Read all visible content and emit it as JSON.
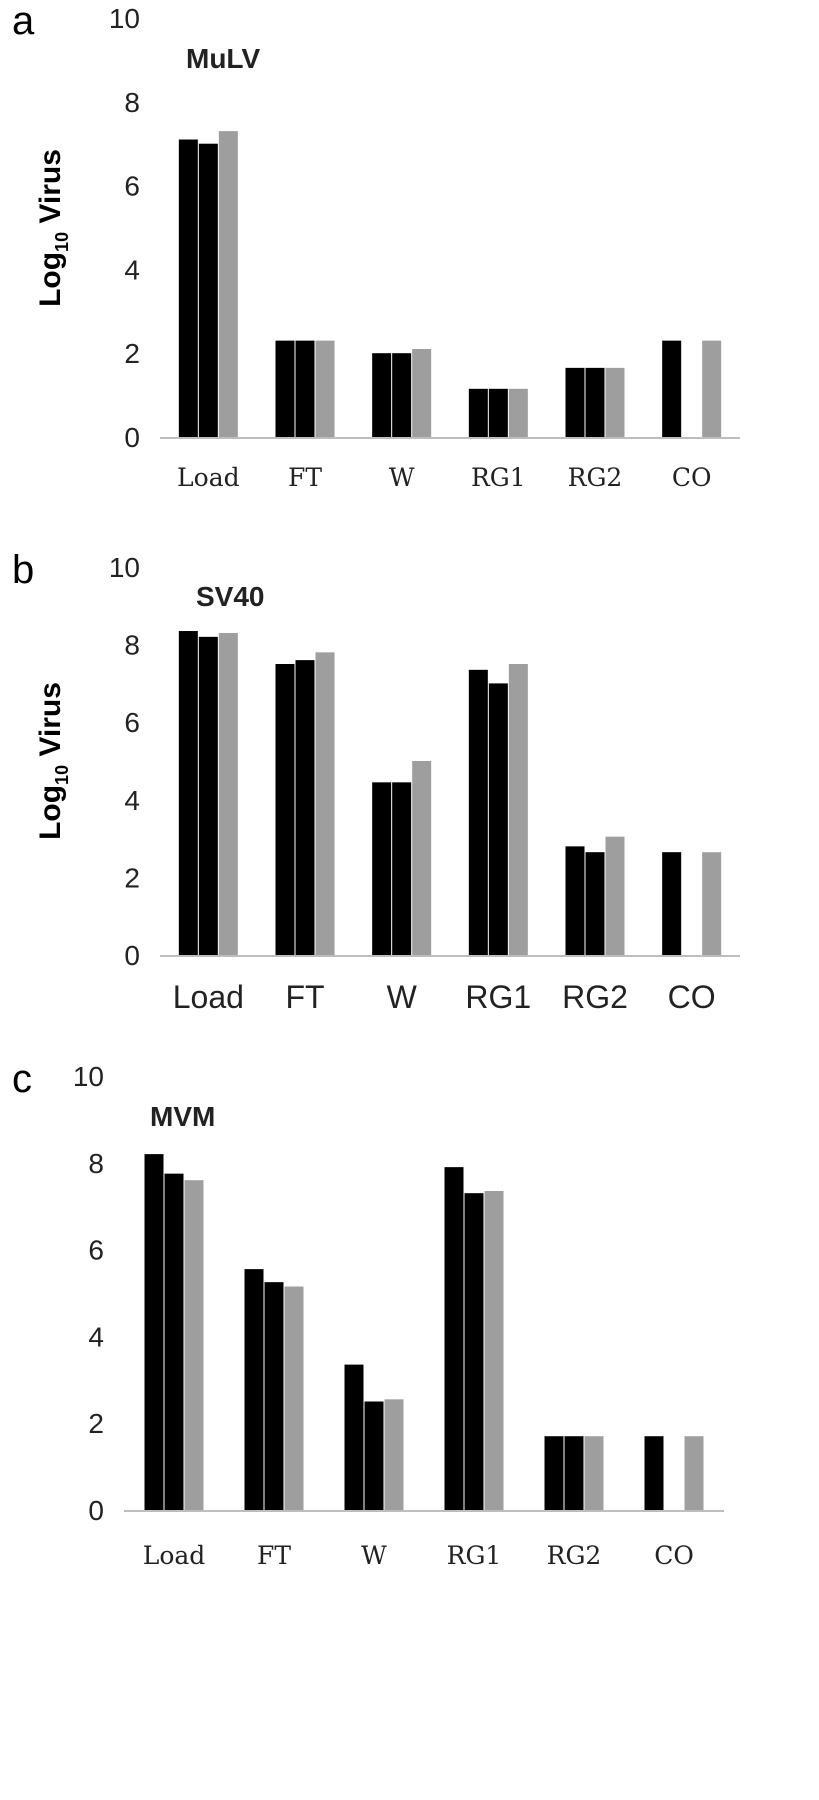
{
  "colors": {
    "dark": "#000000",
    "grey": "#9e9e9e",
    "axis": "#bdbdbd"
  },
  "chart_data": [
    {
      "type": "bar",
      "panel": "a",
      "title": "MuLV",
      "ylabel": "Log10 Virus",
      "ylim": [
        0,
        10
      ],
      "yticks": [
        0,
        2,
        4,
        6,
        8,
        10
      ],
      "grid": false,
      "legend": "none",
      "categories": [
        "Load",
        "FT",
        "W",
        "RG1",
        "RG2",
        "CO"
      ],
      "series": [
        {
          "color": "#000000",
          "values": [
            7.1,
            2.3,
            2.0,
            1.15,
            1.65,
            2.3
          ]
        },
        {
          "color": "#000000",
          "values": [
            7.0,
            2.3,
            2.0,
            1.15,
            1.65,
            null
          ]
        },
        {
          "color": "#9e9e9e",
          "values": [
            7.3,
            2.3,
            2.1,
            1.15,
            1.65,
            2.3
          ]
        }
      ]
    },
    {
      "type": "bar",
      "panel": "b",
      "title": "SV40",
      "ylabel": "Log10 Virus",
      "ylim": [
        0,
        10
      ],
      "yticks": [
        0,
        2,
        4,
        6,
        8,
        10
      ],
      "grid": false,
      "legend": "none",
      "categories": [
        "Load",
        "FT",
        "W",
        "RG1",
        "RG2",
        "CO"
      ],
      "series": [
        {
          "color": "#000000",
          "values": [
            8.35,
            7.5,
            4.45,
            7.35,
            2.8,
            2.65
          ]
        },
        {
          "color": "#000000",
          "values": [
            8.2,
            7.6,
            4.45,
            7.0,
            2.65,
            null
          ]
        },
        {
          "color": "#9e9e9e",
          "values": [
            8.3,
            7.8,
            5.0,
            7.5,
            3.05,
            2.65
          ]
        }
      ]
    },
    {
      "type": "bar",
      "panel": "c",
      "title": "MVM",
      "ylabel": "",
      "ylim": [
        0,
        10
      ],
      "yticks": [
        0,
        2,
        4,
        6,
        8,
        10
      ],
      "grid": false,
      "legend": "none",
      "categories": [
        "Load",
        "FT",
        "W",
        "RG1",
        "RG2",
        "CO"
      ],
      "series": [
        {
          "color": "#000000",
          "values": [
            8.2,
            5.55,
            3.35,
            7.9,
            1.7,
            1.7
          ]
        },
        {
          "color": "#000000",
          "values": [
            7.75,
            5.25,
            2.5,
            7.3,
            1.7,
            null
          ]
        },
        {
          "color": "#9e9e9e",
          "values": [
            7.6,
            5.15,
            2.55,
            7.35,
            1.7,
            1.7
          ]
        }
      ]
    }
  ]
}
